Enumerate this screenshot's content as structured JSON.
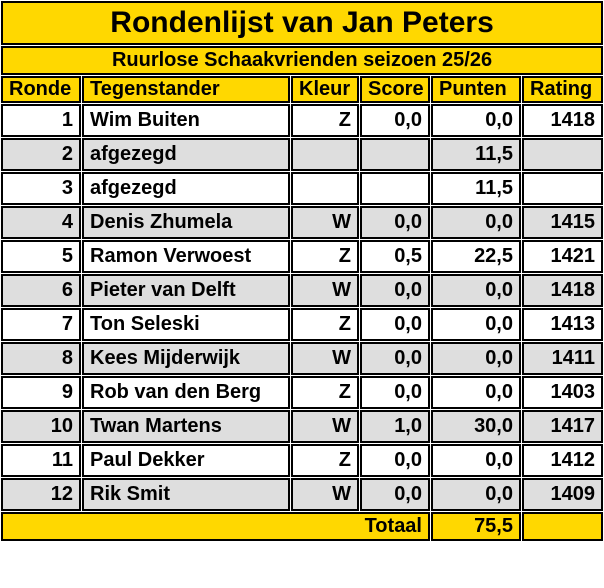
{
  "header": {
    "title": "Rondenlijst van Jan Peters",
    "subtitle": "Ruurlose Schaakvrienden seizoen 25/26"
  },
  "table": {
    "columns": [
      {
        "key": "ronde",
        "label": "Ronde"
      },
      {
        "key": "tegenstander",
        "label": "Tegenstander"
      },
      {
        "key": "kleur",
        "label": "Kleur"
      },
      {
        "key": "score",
        "label": "Score"
      },
      {
        "key": "punten",
        "label": "Punten"
      },
      {
        "key": "rating",
        "label": "Rating"
      }
    ],
    "rows": [
      [
        "1",
        "Wim Buiten",
        "Z",
        "0,0",
        "0,0",
        "1418"
      ],
      [
        "2",
        "afgezegd",
        "",
        "",
        "11,5",
        ""
      ],
      [
        "3",
        "afgezegd",
        "",
        "",
        "11,5",
        ""
      ],
      [
        "4",
        "Denis Zhumela",
        "W",
        "0,0",
        "0,0",
        "1415"
      ],
      [
        "5",
        "Ramon Verwoest",
        "Z",
        "0,5",
        "22,5",
        "1421"
      ],
      [
        "6",
        "Pieter van Delft",
        "W",
        "0,0",
        "0,0",
        "1418"
      ],
      [
        "7",
        "Ton Seleski",
        "Z",
        "0,0",
        "0,0",
        "1413"
      ],
      [
        "8",
        "Kees Mijderwijk",
        "W",
        "0,0",
        "0,0",
        "1411"
      ],
      [
        "9",
        "Rob van den Berg",
        "Z",
        "0,0",
        "0,0",
        "1403"
      ],
      [
        "10",
        "Twan Martens",
        "W",
        "1,0",
        "30,0",
        "1417"
      ],
      [
        "11",
        "Paul Dekker",
        "Z",
        "0,0",
        "0,0",
        "1412"
      ],
      [
        "12",
        "Rik Smit",
        "W",
        "0,0",
        "0,0",
        "1409"
      ]
    ],
    "footer": {
      "total_label": "Totaal",
      "total_punten": "75,5",
      "total_rating": ""
    }
  },
  "colors": {
    "accent_yellow": "#FFD800",
    "row_alt_gray": "#DEDEDE",
    "row_white": "#FFFFFF",
    "border_black": "#000000",
    "text_black": "#000000"
  }
}
